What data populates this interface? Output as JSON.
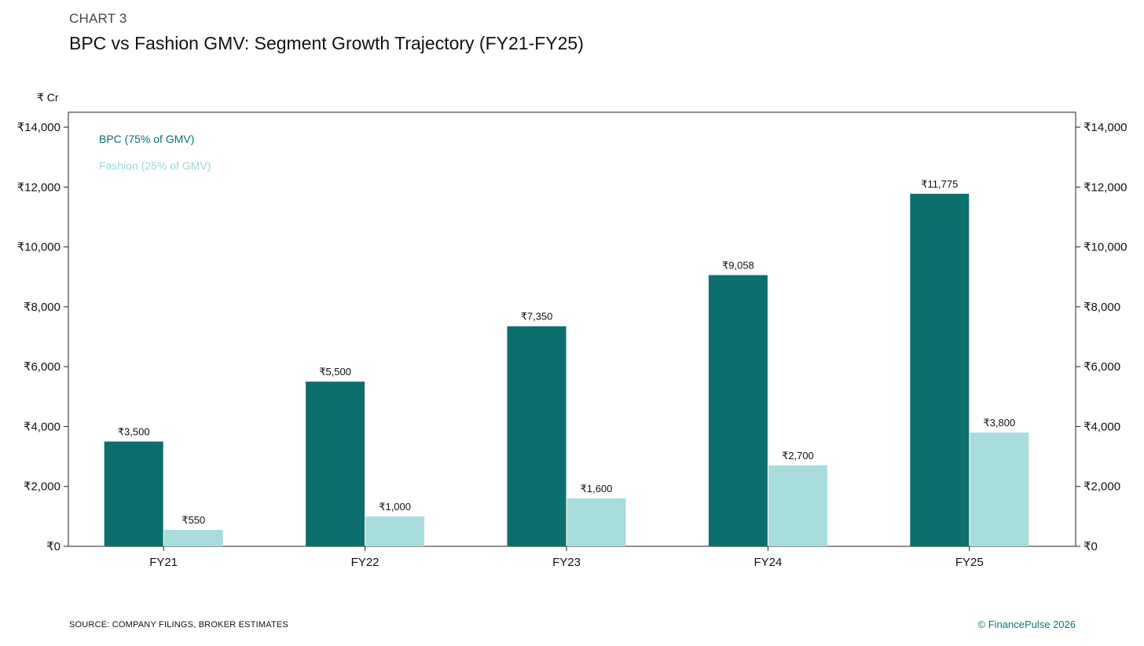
{
  "header": {
    "kicker": "CHART 3",
    "title": "BPC vs Fashion GMV: Segment Growth Trajectory (FY21-FY25)"
  },
  "footer": {
    "source": "SOURCE: COMPANY FILINGS, BROKER ESTIMATES",
    "brand": "© FinancePulse 2026"
  },
  "chart_data": {
    "type": "bar",
    "title": "BPC vs Fashion GMV: Segment Growth Trajectory (FY21-FY25)",
    "unit_label": "₹ Cr",
    "categories": [
      "FY21",
      "FY22",
      "FY23",
      "FY24",
      "FY25"
    ],
    "series": [
      {
        "name": "BPC (75% of GMV)",
        "color": "#0d6e6e",
        "values": [
          3500,
          5500,
          7350,
          9058,
          11775
        ],
        "labels": [
          "₹3,500",
          "₹5,500",
          "₹7,350",
          "₹9,058",
          "₹11,775"
        ]
      },
      {
        "name": "Fashion (25% of GMV)",
        "color": "#a8dcdd",
        "values": [
          550,
          1000,
          1600,
          2700,
          3800
        ],
        "labels": [
          "₹550",
          "₹1,000",
          "₹1,600",
          "₹2,700",
          "₹3,800"
        ]
      }
    ],
    "ylim": [
      0,
      14000
    ],
    "yticks": [
      0,
      2000,
      4000,
      6000,
      8000,
      10000,
      12000,
      14000
    ],
    "ytick_labels": [
      "₹0",
      "₹2,000",
      "₹4,000",
      "₹6,000",
      "₹8,000",
      "₹10,000",
      "₹12,000",
      "₹14,000"
    ],
    "legend_position": "top-left",
    "grid": false
  }
}
